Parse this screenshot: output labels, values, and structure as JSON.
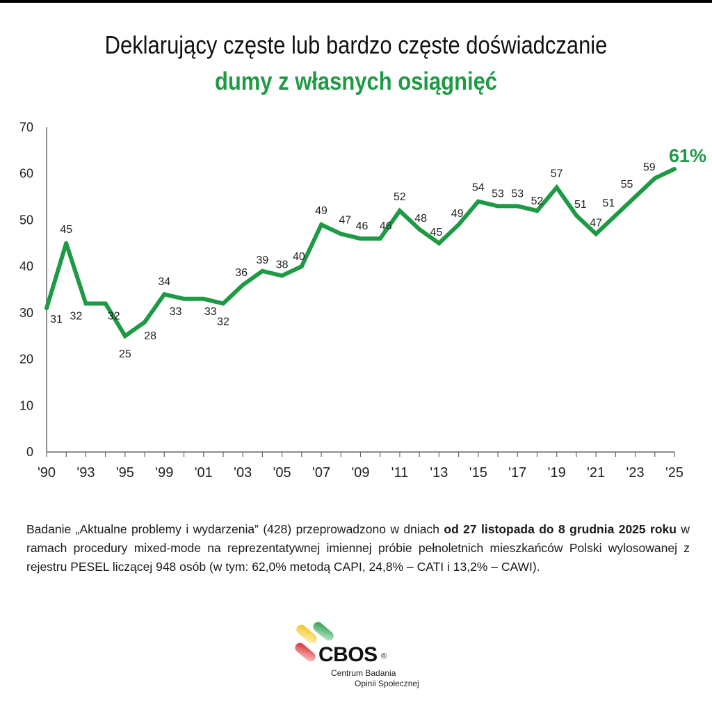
{
  "title": "Deklarujący częste lub bardzo częste doświadczanie",
  "subtitle": "dumy z własnych osiągnięć",
  "colors": {
    "accent": "#1e9a45",
    "line": "#1e9a45",
    "axis": "#555555",
    "text": "#1a1a1a"
  },
  "chart_data": {
    "type": "line",
    "title": "Deklarujący częste lub bardzo częste doświadczanie dumy z własnych osiągnięć",
    "xlabel": "",
    "ylabel": "",
    "ylim": [
      0,
      70
    ],
    "yticks": [
      "0",
      "10",
      "20",
      "30",
      "40",
      "50",
      "60",
      "70"
    ],
    "ytick_values": [
      0,
      10,
      20,
      30,
      40,
      50,
      60,
      70
    ],
    "xtick_labels": [
      "'90",
      "'93",
      "'95",
      "'99",
      "'01",
      "'03",
      "'05",
      "'07",
      "'09",
      "'11",
      "'13",
      "'15",
      "'17",
      "'19",
      "'21",
      "'23",
      "'25"
    ],
    "xtick_label_indices": [
      0,
      2,
      4,
      6,
      8,
      10,
      12,
      14,
      16,
      18,
      20,
      22,
      24,
      26,
      28,
      30,
      32
    ],
    "point_count": 33,
    "grid": false,
    "legend": "none",
    "series": [
      {
        "name": "dumy z własnych osiągnięć",
        "values": [
          31,
          45,
          32,
          32,
          25,
          28,
          34,
          33,
          33,
          32,
          36,
          39,
          38,
          40,
          49,
          47,
          46,
          46,
          52,
          48,
          45,
          49,
          54,
          53,
          53,
          52,
          57,
          51,
          47,
          51,
          55,
          59,
          61
        ],
        "labels": [
          "31",
          "45",
          "32",
          "32",
          "25",
          "28",
          "34",
          "33",
          "33",
          "32",
          "36",
          "39",
          "38",
          "40",
          "49",
          "47",
          "46",
          "46",
          "52",
          "48",
          "45",
          "49",
          "54",
          "53",
          "53",
          "52",
          "57",
          "51",
          "47",
          "51",
          "55",
          "59",
          "61%"
        ]
      }
    ]
  },
  "note": {
    "part1": "Badanie „Aktualne problemy i wydarzenia” (428) przeprowadzono w dniach ",
    "bold1": "od 27 listopada do 8 grudnia 2025 roku",
    "part2": " w ramach procedury mixed-mode na reprezentatywnej imiennej próbie pełnoletnich mieszkańców Polski wylosowanej z rejestru PESEL liczącej 948 osób (w tym: 62,0% metodą CAPI, 24,8% – CATI i 13,2% – CAWI)."
  },
  "logo": {
    "wordmark": "CBOS",
    "registered": "®",
    "line1": "Centrum Badania",
    "line2": "Opinii Społecznej"
  }
}
